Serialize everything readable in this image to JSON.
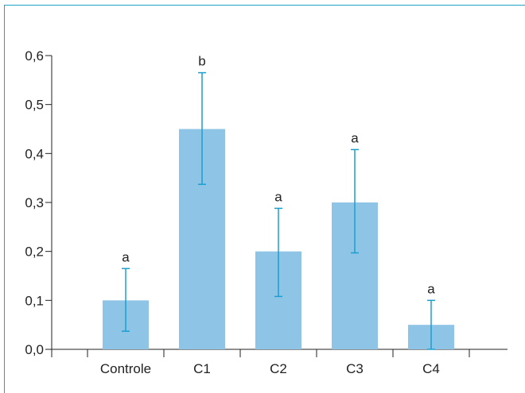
{
  "chart_data": {
    "type": "bar",
    "categories": [
      "Controle",
      "C1",
      "C2",
      "C3",
      "C4"
    ],
    "values": [
      0.1,
      0.45,
      0.2,
      0.3,
      0.05
    ],
    "error_upper": [
      0.165,
      0.565,
      0.288,
      0.408,
      0.1
    ],
    "error_lower": [
      0.037,
      0.337,
      0.108,
      0.197,
      0.0
    ],
    "significance_letters": [
      "a",
      "b",
      "a",
      "a",
      "a"
    ],
    "ylim": [
      0,
      0.6
    ],
    "yticks": [
      "0,0",
      "0,1",
      "0,2",
      "0,3",
      "0,4",
      "0,5",
      "0,6"
    ],
    "title": "",
    "xlabel": "",
    "ylabel": "",
    "grid": false,
    "colors": {
      "bar": "#8ec5e6",
      "error_bar": "#1a9fd0",
      "axis": "#222222",
      "frame": "#1ea4c4"
    }
  }
}
